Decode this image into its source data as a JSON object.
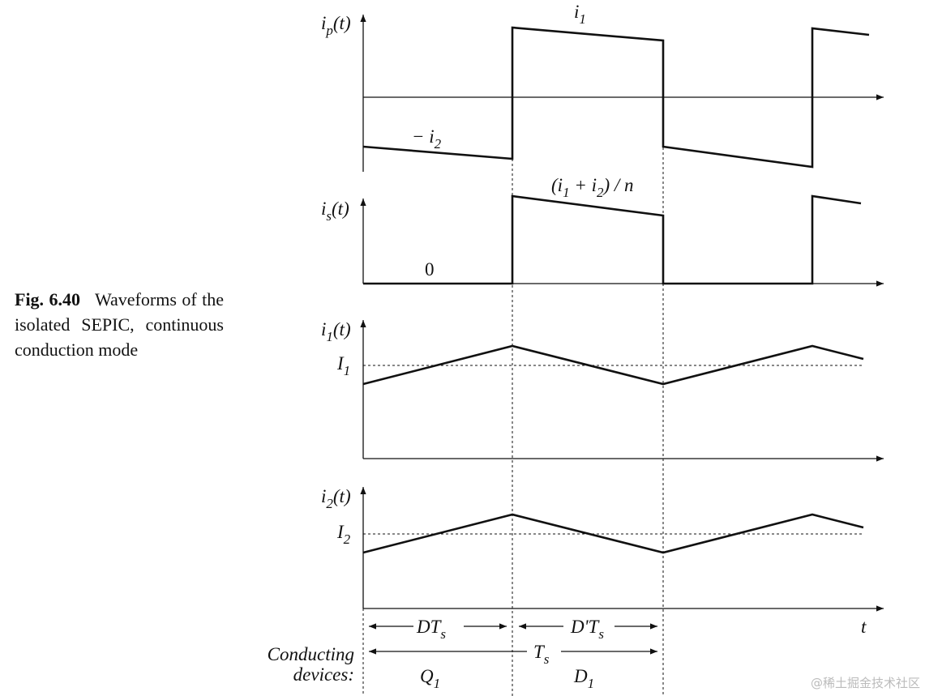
{
  "caption": {
    "label": "Fig. 6.40",
    "text": "Waveforms of the isolated SEPIC, continuous conduction mode"
  },
  "panels": [
    {
      "ylabel": [
        "i",
        "p",
        "(t)"
      ],
      "notes": [
        [
          "i",
          "1"
        ],
        [
          "− i",
          "2"
        ]
      ]
    },
    {
      "ylabel": [
        "i",
        "s",
        "(t)"
      ],
      "notes": [
        [
          "(i",
          "1",
          " + i",
          "2",
          ") / n"
        ],
        [
          "0"
        ]
      ]
    },
    {
      "ylabel": [
        "i",
        "1",
        "(t)"
      ],
      "notes": [
        [
          "I",
          "1"
        ]
      ]
    },
    {
      "ylabel": [
        "i",
        "2",
        "(t)"
      ],
      "notes": [
        [
          "I",
          "2"
        ]
      ]
    }
  ],
  "timing": {
    "interval_1": [
      "DT",
      "s"
    ],
    "interval_2": [
      "D'T",
      "s"
    ],
    "period": [
      "T",
      "s"
    ],
    "axis": [
      "t"
    ]
  },
  "devices": {
    "heading": [
      "Conducting",
      "devices:"
    ],
    "first": [
      "Q",
      "1"
    ],
    "second": [
      "D",
      "1"
    ]
  },
  "watermark": "@稀土掘金技术社区"
}
